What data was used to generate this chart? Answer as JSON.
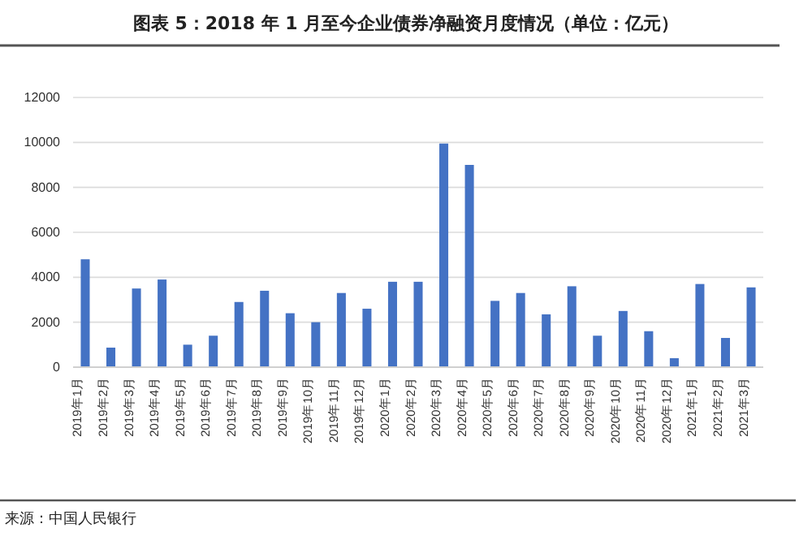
{
  "chart_data": {
    "type": "bar",
    "title": "图表 5：2018 年 1 月至今企业债券净融资月度情况（单位：亿元）",
    "categories": [
      "2019年1月",
      "2019年2月",
      "2019年3月",
      "2019年4月",
      "2019年5月",
      "2019年6月",
      "2019年7月",
      "2019年8月",
      "2019年9月",
      "2019年10月",
      "2019年11月",
      "2019年12月",
      "2020年1月",
      "2020年2月",
      "2020年3月",
      "2020年4月",
      "2020年5月",
      "2020年6月",
      "2020年7月",
      "2020年8月",
      "2020年9月",
      "2020年10月",
      "2020年11月",
      "2020年12月",
      "2021年1月",
      "2021年2月",
      "2021年3月"
    ],
    "values": [
      4800,
      870,
      3500,
      3900,
      1000,
      1400,
      2900,
      3400,
      2400,
      2000,
      3300,
      2600,
      3800,
      3800,
      9950,
      9000,
      2950,
      3300,
      2350,
      3600,
      1400,
      2500,
      1600,
      400,
      3700,
      1300,
      3550
    ],
    "color": "#4472c4",
    "ylim": [
      0,
      12000
    ],
    "yticks": [
      0,
      2000,
      4000,
      6000,
      8000,
      10000,
      12000
    ],
    "grid": "y",
    "annotations": [
      "来源：中国人民银行"
    ]
  }
}
